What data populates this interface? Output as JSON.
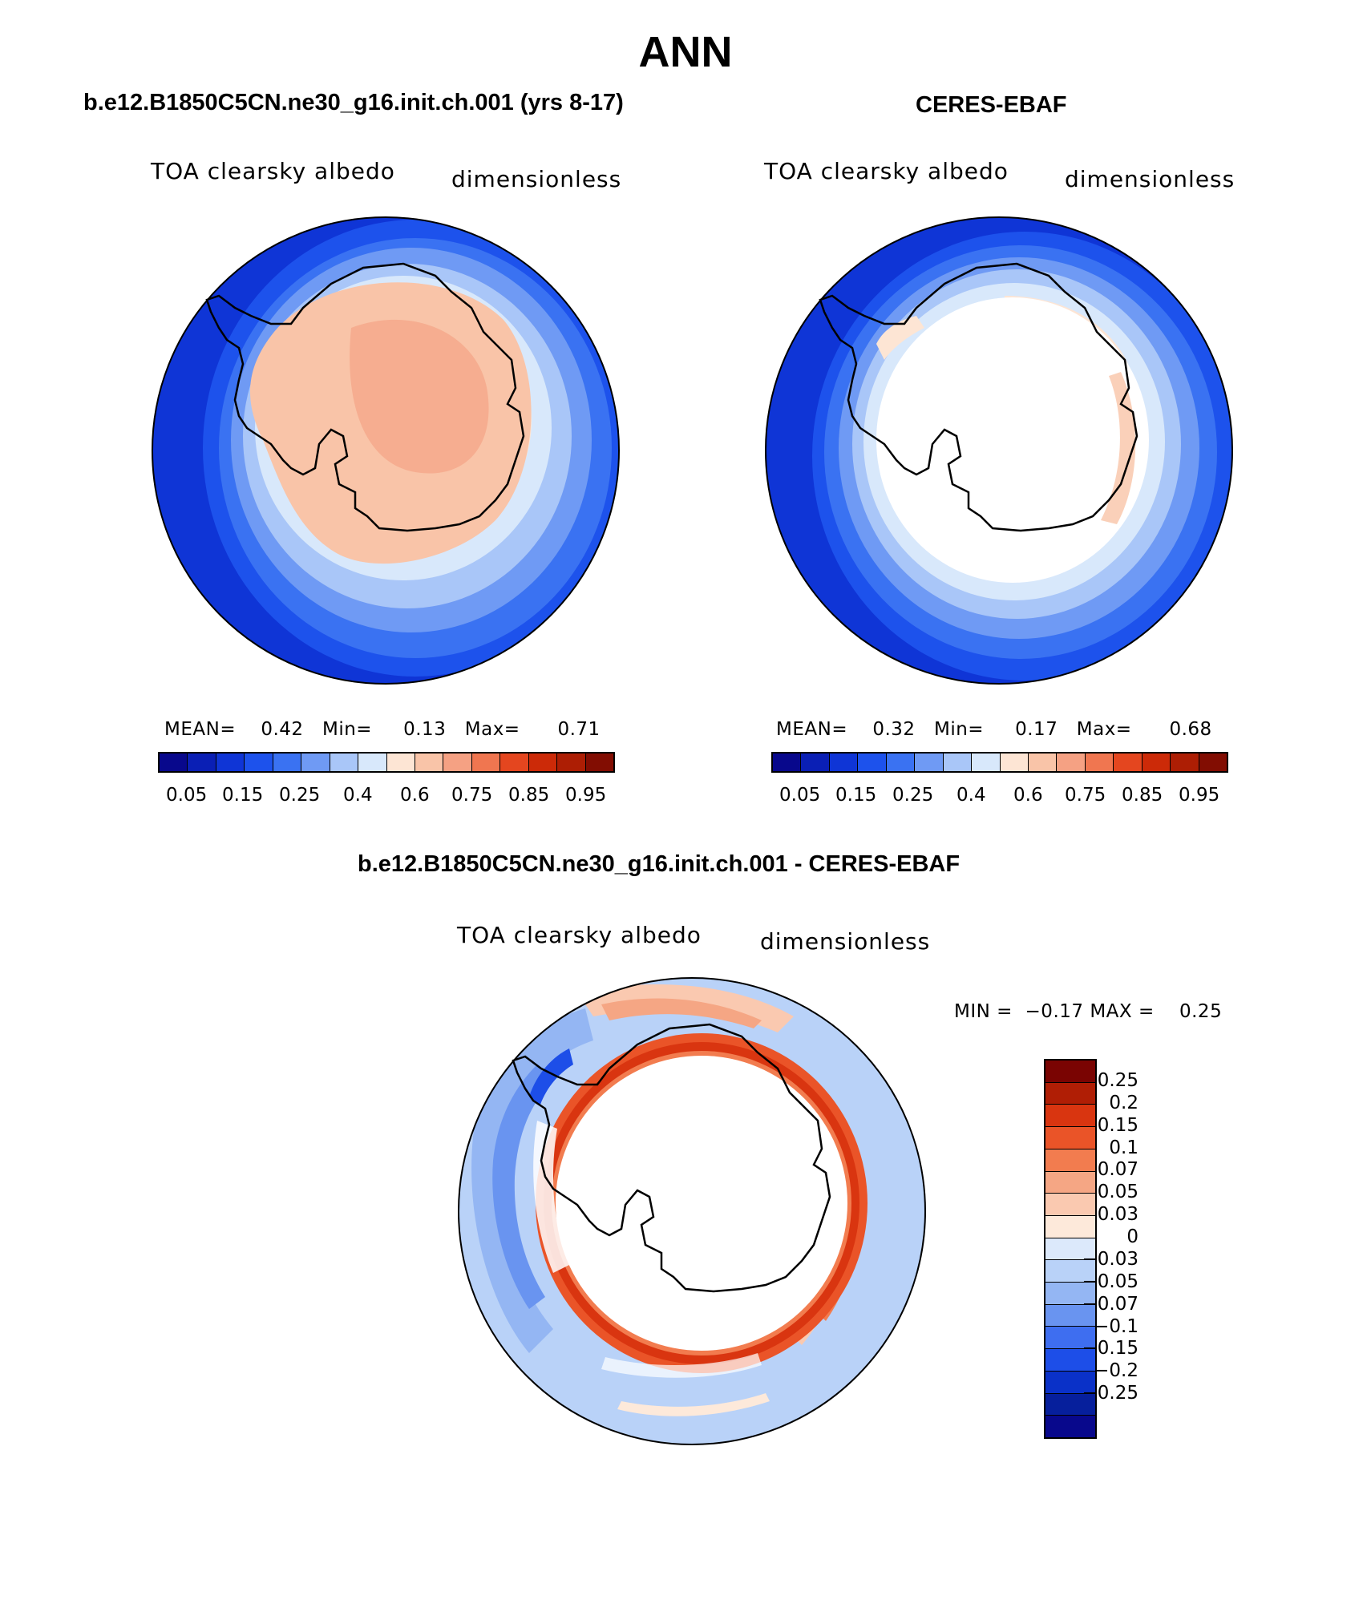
{
  "title": "ANN",
  "colors": {
    "seq": [
      "#08088c",
      "#0a1fb5",
      "#0f35d6",
      "#1d52ec",
      "#3a72f2",
      "#6f9af4",
      "#a9c6f8",
      "#d8e8fb",
      "#fde5d4",
      "#f9c4a8",
      "#f5a183",
      "#f07650",
      "#e4461f",
      "#cc2a08",
      "#ad1e04",
      "#820d02"
    ],
    "div": [
      "#7a0402",
      "#b01e05",
      "#d93510",
      "#ea5428",
      "#f27c4f",
      "#f5a684",
      "#fac9b0",
      "#fde9da",
      "#dce9fb",
      "#b9d2f8",
      "#94b6f3",
      "#6994f0",
      "#3e6ef0",
      "#1d4ee8",
      "#0a31c8",
      "#061f9c",
      "#08088c"
    ]
  },
  "panels": [
    {
      "title": "b.e12.B1850C5CN.ne30_g16.init.ch.001 (yrs 8-17)",
      "variable": "TOA clearsky albedo",
      "units": "dimensionless",
      "stats": "MEAN=    0.42   Min=     0.13   Max=      0.71",
      "ticks": [
        "0.05",
        "0.15",
        "0.25",
        "0.4",
        "0.6",
        "0.75",
        "0.85",
        "0.95"
      ]
    },
    {
      "title": "CERES-EBAF",
      "variable": "TOA clearsky albedo",
      "units": "dimensionless",
      "stats": "MEAN=    0.32   Min=     0.17   Max=      0.68",
      "ticks": [
        "0.05",
        "0.15",
        "0.25",
        "0.4",
        "0.6",
        "0.75",
        "0.85",
        "0.95"
      ]
    },
    {
      "title": "b.e12.B1850C5CN.ne30_g16.init.ch.001 - CERES-EBAF",
      "variable": "TOA clearsky albedo",
      "units": "dimensionless",
      "stats": "MIN =  −0.17 MAX =    0.25",
      "levels": [
        "0.25",
        "0.2",
        "0.15",
        "0.1",
        "0.07",
        "0.05",
        "0.03",
        "0",
        "−0.03",
        "−0.05",
        "−0.07",
        "−0.1",
        "−0.15",
        "−0.2",
        "−0.25"
      ]
    }
  ]
}
